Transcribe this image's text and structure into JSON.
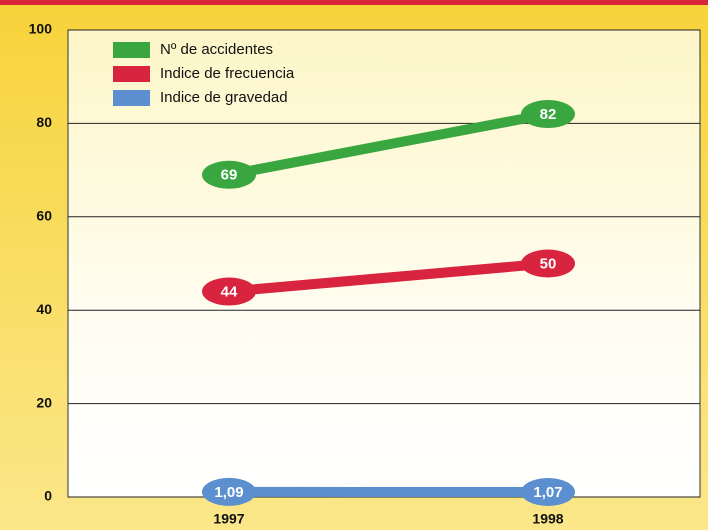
{
  "chart_data": {
    "type": "line",
    "categories": [
      "1997",
      "1998"
    ],
    "series": [
      {
        "name": "Nº de accidentes",
        "color": "#3aa640",
        "values": [
          69,
          82
        ]
      },
      {
        "name": "Indice de frecuencia",
        "color": "#d9243f",
        "values": [
          44,
          50
        ]
      },
      {
        "name": "Indice de gravedad",
        "color": "#5b8fd0",
        "values": [
          1.09,
          1.07
        ],
        "value_labels": [
          "1,09",
          "1,07"
        ]
      }
    ],
    "ylim": [
      0,
      100
    ],
    "yticks": [
      0,
      20,
      40,
      60,
      80,
      100
    ],
    "grid": true,
    "legend": "top-left"
  }
}
